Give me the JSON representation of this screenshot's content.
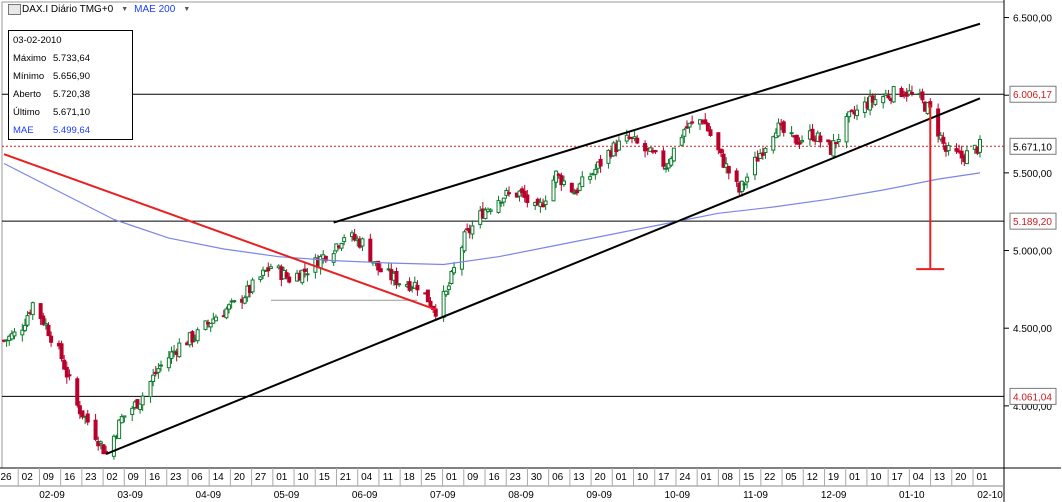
{
  "header": {
    "symbol_label": "DAX.I Diário TMG+0",
    "indicator_label": "MAE 200",
    "logo_icon": "chart-window-icon",
    "dropdown_icon": "triangle-down-icon"
  },
  "info_box": {
    "date": "03-02-2010",
    "rows": [
      {
        "label": "Máximo",
        "value": "5.733,64"
      },
      {
        "label": "Mínimo",
        "value": "5.656,90"
      },
      {
        "label": "Aberto",
        "value": "5.720,38"
      },
      {
        "label": "Último",
        "value": "5.671,10"
      }
    ],
    "mae_label": "MAE",
    "mae_value": "5.499,64"
  },
  "colors": {
    "up": "#0a7a2a",
    "down": "#b8002a",
    "ma": "#7b86e8",
    "red_line": "#e82020",
    "trend": "#000000",
    "axis_text": "#000000",
    "marker_text": "#d11a1a",
    "marker_border": "#7a7a7a",
    "dotted": "#d11a1a"
  },
  "chart_data": {
    "type": "candlestick",
    "ylim": [
      3600,
      6600
    ],
    "y_ticks": [
      "6.500,00",
      "6.000,00",
      "5.500,00",
      "5.000,00",
      "4.500,00",
      "4.000,00"
    ],
    "y_tick_values": [
      6500,
      6000,
      5500,
      5000,
      4500,
      4000
    ],
    "price_markers": [
      {
        "label": "6.006,17",
        "value": 6006.17
      },
      {
        "label": "5.671,10",
        "value": 5671.1
      },
      {
        "label": "5.189,20",
        "value": 5189.2
      },
      {
        "label": "4.061,04",
        "value": 4061.04
      }
    ],
    "x_day_ticks": [
      "26",
      "02",
      "09",
      "16",
      "23",
      "02",
      "09",
      "16",
      "23",
      "06",
      "14",
      "20",
      "27",
      "01",
      "10",
      "15",
      "21",
      "04",
      "11",
      "18",
      "25",
      "01",
      "09",
      "16",
      "23",
      "30",
      "06",
      "13",
      "20",
      "01",
      "10",
      "17",
      "24",
      "01",
      "08",
      "15",
      "22",
      "05",
      "12",
      "19",
      "01",
      "10",
      "17",
      "04",
      "13",
      "20",
      "01"
    ],
    "x_month_labels": [
      "02-09",
      "03-09",
      "04-09",
      "05-09",
      "06-09",
      "07-09",
      "08-09",
      "09-09",
      "10-09",
      "11-09",
      "12-09",
      "01-10",
      "02-10"
    ],
    "x_range": [
      "2009-01-26",
      "2010-02-03"
    ],
    "close_series": [
      {
        "date": "2009-01-26",
        "value": 4420
      },
      {
        "date": "2009-02-01",
        "value": 4480
      },
      {
        "date": "2009-02-06",
        "value": 4660
      },
      {
        "date": "2009-02-11",
        "value": 4520
      },
      {
        "date": "2009-02-17",
        "value": 4310
      },
      {
        "date": "2009-02-23",
        "value": 4000
      },
      {
        "date": "2009-03-01",
        "value": 3850
      },
      {
        "date": "2009-03-06",
        "value": 3690
      },
      {
        "date": "2009-03-12",
        "value": 3920
      },
      {
        "date": "2009-03-19",
        "value": 4040
      },
      {
        "date": "2009-03-26",
        "value": 4240
      },
      {
        "date": "2009-04-03",
        "value": 4390
      },
      {
        "date": "2009-04-10",
        "value": 4460
      },
      {
        "date": "2009-04-17",
        "value": 4580
      },
      {
        "date": "2009-04-24",
        "value": 4650
      },
      {
        "date": "2009-04-30",
        "value": 4750
      },
      {
        "date": "2009-05-08",
        "value": 4900
      },
      {
        "date": "2009-05-15",
        "value": 4820
      },
      {
        "date": "2009-05-22",
        "value": 4880
      },
      {
        "date": "2009-06-01",
        "value": 5020
      },
      {
        "date": "2009-06-05",
        "value": 5100
      },
      {
        "date": "2009-06-12",
        "value": 5050
      },
      {
        "date": "2009-06-18",
        "value": 4880
      },
      {
        "date": "2009-06-26",
        "value": 4800
      },
      {
        "date": "2009-07-03",
        "value": 4780
      },
      {
        "date": "2009-07-10",
        "value": 4620
      },
      {
        "date": "2009-07-14",
        "value": 4720
      },
      {
        "date": "2009-07-21",
        "value": 5080
      },
      {
        "date": "2009-07-28",
        "value": 5250
      },
      {
        "date": "2009-08-04",
        "value": 5350
      },
      {
        "date": "2009-08-11",
        "value": 5370
      },
      {
        "date": "2009-08-18",
        "value": 5250
      },
      {
        "date": "2009-08-25",
        "value": 5490
      },
      {
        "date": "2009-09-01",
        "value": 5380
      },
      {
        "date": "2009-09-08",
        "value": 5500
      },
      {
        "date": "2009-09-15",
        "value": 5650
      },
      {
        "date": "2009-09-22",
        "value": 5720
      },
      {
        "date": "2009-09-29",
        "value": 5630
      },
      {
        "date": "2009-10-06",
        "value": 5550
      },
      {
        "date": "2009-10-13",
        "value": 5780
      },
      {
        "date": "2009-10-20",
        "value": 5850
      },
      {
        "date": "2009-10-27",
        "value": 5600
      },
      {
        "date": "2009-11-03",
        "value": 5380
      },
      {
        "date": "2009-11-10",
        "value": 5600
      },
      {
        "date": "2009-11-17",
        "value": 5800
      },
      {
        "date": "2009-11-24",
        "value": 5700
      },
      {
        "date": "2009-12-01",
        "value": 5750
      },
      {
        "date": "2009-12-08",
        "value": 5650
      },
      {
        "date": "2009-12-15",
        "value": 5850
      },
      {
        "date": "2009-12-22",
        "value": 5950
      },
      {
        "date": "2009-12-29",
        "value": 6000
      },
      {
        "date": "2010-01-05",
        "value": 6030
      },
      {
        "date": "2010-01-11",
        "value": 5970
      },
      {
        "date": "2010-01-15",
        "value": 5900
      },
      {
        "date": "2010-01-21",
        "value": 5640
      },
      {
        "date": "2010-01-27",
        "value": 5600
      },
      {
        "date": "2010-02-03",
        "value": 5671
      }
    ],
    "ma200_series": [
      {
        "date": "2009-01-26",
        "value": 5560
      },
      {
        "date": "2009-02-16",
        "value": 5380
      },
      {
        "date": "2009-03-09",
        "value": 5200
      },
      {
        "date": "2009-03-30",
        "value": 5080
      },
      {
        "date": "2009-04-20",
        "value": 5010
      },
      {
        "date": "2009-05-11",
        "value": 4960
      },
      {
        "date": "2009-06-01",
        "value": 4935
      },
      {
        "date": "2009-06-22",
        "value": 4920
      },
      {
        "date": "2009-07-13",
        "value": 4910
      },
      {
        "date": "2009-08-03",
        "value": 4960
      },
      {
        "date": "2009-08-24",
        "value": 5030
      },
      {
        "date": "2009-09-14",
        "value": 5100
      },
      {
        "date": "2009-10-05",
        "value": 5170
      },
      {
        "date": "2009-10-26",
        "value": 5240
      },
      {
        "date": "2009-11-16",
        "value": 5280
      },
      {
        "date": "2009-12-07",
        "value": 5330
      },
      {
        "date": "2009-12-28",
        "value": 5390
      },
      {
        "date": "2010-01-18",
        "value": 5460
      },
      {
        "date": "2010-02-03",
        "value": 5499.64
      }
    ],
    "trendlines": [
      {
        "role": "upper-channel",
        "from": {
          "date": "2009-06-01",
          "value": 5180
        },
        "to": {
          "date": "2010-02-03",
          "value": 6460
        }
      },
      {
        "role": "lower-channel",
        "from": {
          "date": "2009-03-06",
          "value": 3690
        },
        "to": {
          "date": "2010-02-03",
          "value": 5980
        }
      },
      {
        "role": "red-downtrend",
        "from": {
          "date": "2009-01-26",
          "value": 5620
        },
        "to": {
          "date": "2009-07-10",
          "value": 4620
        }
      },
      {
        "role": "red-drop",
        "from": {
          "date": "2010-01-15",
          "value": 5940
        },
        "to": {
          "date": "2010-01-15",
          "value": 4880
        }
      }
    ],
    "horizontal_lines": [
      6006.17,
      5189.2,
      4061.04
    ],
    "dotted_line": 5671.1,
    "support_segment": {
      "from": "2009-05-08",
      "to": "2009-07-03",
      "value": 4680
    }
  }
}
